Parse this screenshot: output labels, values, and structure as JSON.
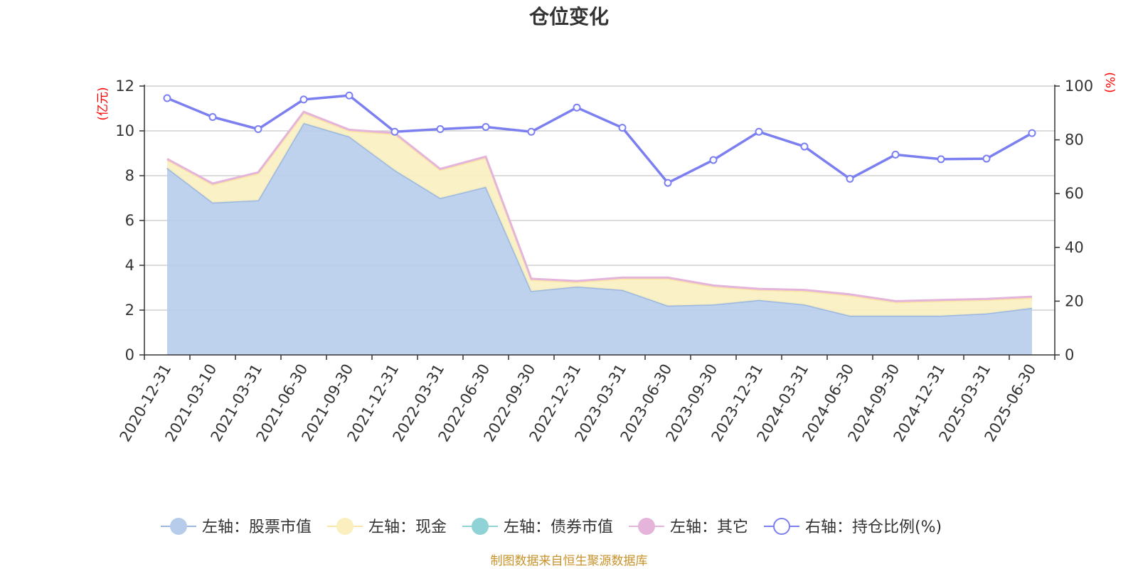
{
  "chart_data": {
    "type": "area",
    "title": "仓位变化",
    "left_axis_unit": "(亿元)",
    "right_axis_unit": "(%)",
    "left_ylim": [
      0,
      12
    ],
    "left_ticks": [
      "0",
      "2",
      "4",
      "6",
      "8",
      "10",
      "12"
    ],
    "right_ylim": [
      0,
      100
    ],
    "right_ticks": [
      "0",
      "20",
      "40",
      "60",
      "80",
      "100"
    ],
    "grid": true,
    "legend_position": "bottom",
    "x": [
      "2020-12-31",
      "2021-03-10",
      "2021-03-31",
      "2021-06-30",
      "2021-09-30",
      "2021-12-31",
      "2022-03-31",
      "2022-06-30",
      "2022-09-30",
      "2022-12-31",
      "2023-03-31",
      "2023-06-30",
      "2023-09-30",
      "2023-12-31",
      "2024-03-31",
      "2024-06-30",
      "2024-09-30",
      "2024-12-31",
      "2025-03-31",
      "2025-06-30"
    ],
    "series": [
      {
        "name": "左轴：股票市值",
        "axis": "left",
        "kind": "stack",
        "color": "#9bb8e0",
        "fill": "#b7cceb",
        "values": [
          8.35,
          6.8,
          6.9,
          10.35,
          9.75,
          8.25,
          7.0,
          7.5,
          2.85,
          3.05,
          2.9,
          2.2,
          2.25,
          2.45,
          2.25,
          1.75,
          1.75,
          1.75,
          1.85,
          2.1
        ]
      },
      {
        "name": "左轴：现金",
        "axis": "left",
        "kind": "stack",
        "color": "#f9e6a6",
        "fill": "#fbefc0",
        "values": [
          0.35,
          0.8,
          1.2,
          0.45,
          0.25,
          1.6,
          1.25,
          1.3,
          0.5,
          0.2,
          0.5,
          1.2,
          0.8,
          0.45,
          0.6,
          0.9,
          0.6,
          0.65,
          0.6,
          0.45
        ]
      },
      {
        "name": "左轴：债券市值",
        "axis": "left",
        "kind": "stack",
        "color": "#8fd3d6",
        "fill": "#8fd3d6",
        "values": [
          0,
          0,
          0,
          0,
          0,
          0,
          0,
          0,
          0,
          0,
          0,
          0,
          0,
          0,
          0,
          0,
          0,
          0,
          0,
          0
        ]
      },
      {
        "name": "左轴：其它",
        "axis": "left",
        "kind": "stack",
        "color": "#e4b4db",
        "fill": "#e4b4db",
        "values": [
          0.05,
          0.05,
          0.05,
          0.05,
          0.05,
          0.05,
          0.05,
          0.05,
          0.05,
          0.05,
          0.05,
          0.05,
          0.05,
          0.05,
          0.05,
          0.05,
          0.05,
          0.05,
          0.05,
          0.05
        ]
      },
      {
        "name": "右轴：持仓比例(%)",
        "axis": "right",
        "kind": "line",
        "color": "#7b7ff0",
        "values": [
          95.5,
          88.5,
          84.0,
          95.0,
          96.5,
          83.0,
          84.0,
          84.8,
          83.0,
          92.0,
          84.5,
          64.0,
          72.5,
          83.0,
          77.5,
          65.5,
          74.5,
          72.8,
          73.0,
          82.5
        ]
      }
    ]
  },
  "source_note": "制图数据来自恒生聚源数据库"
}
